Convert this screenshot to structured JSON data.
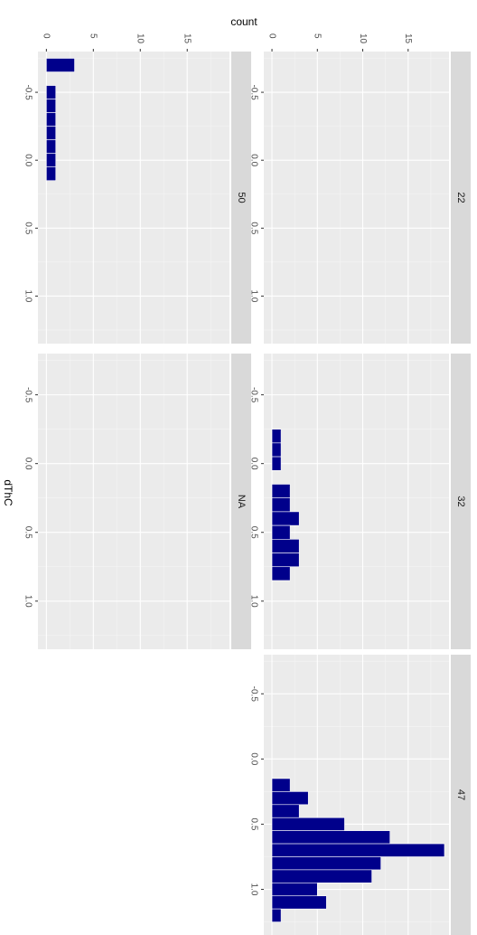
{
  "chart_data": {
    "type": "bar",
    "orientation": "rotated-90-clockwise",
    "xlabel": "dThC",
    "ylabel": "count",
    "x_ticks": [
      "-0.5",
      "0.0",
      "0.5",
      "1.0"
    ],
    "y_ticks": [
      "0",
      "5",
      "10",
      "15"
    ],
    "xlim": [
      -0.8,
      1.35
    ],
    "ylim": [
      -0.9,
      19.5
    ],
    "bin_width": 0.1,
    "grid": true,
    "bar_color": "#00008b",
    "panel_background": "#ebebeb",
    "strip_background": "#d9d9d9",
    "panels": [
      {
        "label": "22",
        "bins": []
      },
      {
        "label": "32",
        "bins": [
          {
            "x": -0.2,
            "count": 1
          },
          {
            "x": -0.1,
            "count": 1
          },
          {
            "x": 0.0,
            "count": 1
          },
          {
            "x": 0.2,
            "count": 2
          },
          {
            "x": 0.3,
            "count": 2
          },
          {
            "x": 0.4,
            "count": 3
          },
          {
            "x": 0.5,
            "count": 2
          },
          {
            "x": 0.6,
            "count": 3
          },
          {
            "x": 0.7,
            "count": 3
          },
          {
            "x": 0.8,
            "count": 2
          }
        ]
      },
      {
        "label": "47",
        "bins": [
          {
            "x": 0.2,
            "count": 2
          },
          {
            "x": 0.3,
            "count": 4
          },
          {
            "x": 0.4,
            "count": 3
          },
          {
            "x": 0.5,
            "count": 8
          },
          {
            "x": 0.6,
            "count": 13
          },
          {
            "x": 0.7,
            "count": 19
          },
          {
            "x": 0.8,
            "count": 12
          },
          {
            "x": 0.9,
            "count": 11
          },
          {
            "x": 1.0,
            "count": 5
          },
          {
            "x": 1.1,
            "count": 6
          },
          {
            "x": 1.2,
            "count": 1
          }
        ]
      },
      {
        "label": "50",
        "bins": [
          {
            "x": -0.7,
            "count": 3
          },
          {
            "x": -0.5,
            "count": 1
          },
          {
            "x": -0.4,
            "count": 1
          },
          {
            "x": -0.3,
            "count": 1
          },
          {
            "x": -0.2,
            "count": 1
          },
          {
            "x": -0.1,
            "count": 1
          },
          {
            "x": 0.0,
            "count": 1
          },
          {
            "x": 0.1,
            "count": 1
          }
        ]
      },
      {
        "label": "NA",
        "bins": []
      }
    ]
  }
}
